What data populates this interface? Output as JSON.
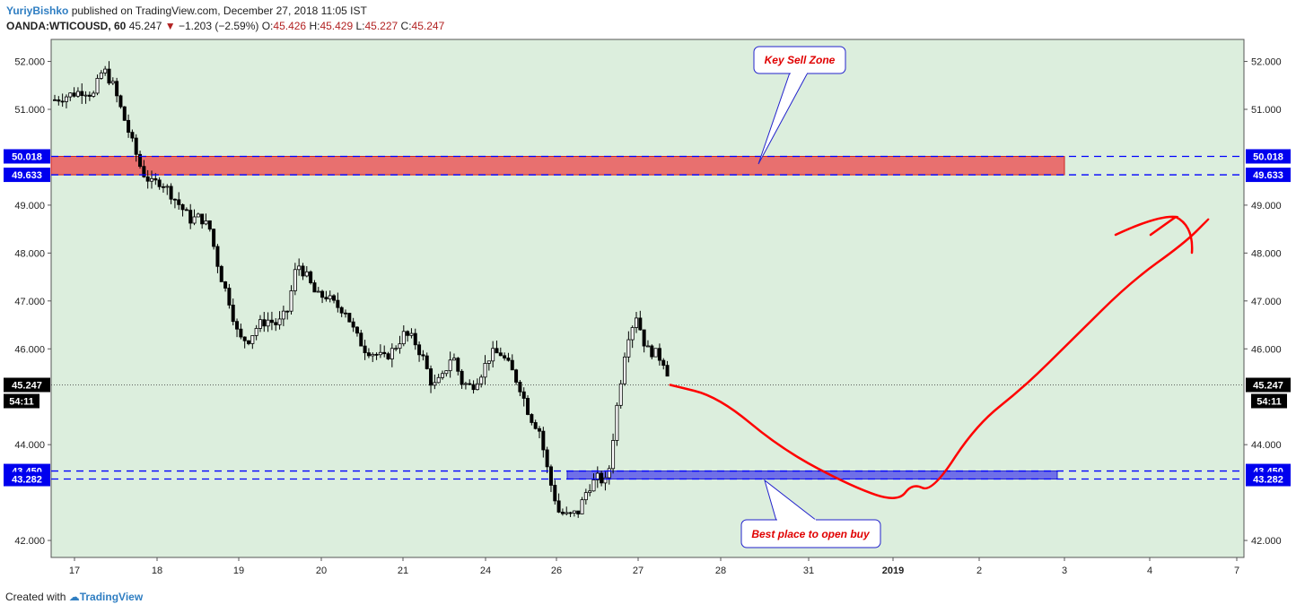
{
  "header": {
    "author": "YuriyBishko",
    "published": "published on TradingView.com, December 27, 2018 11:05 IST",
    "symbol": "OANDA:WTICOUSD, 60",
    "last": "45.247",
    "change": "−1.203 (−2.59%)",
    "o_label": "O:",
    "o_value": "45.426",
    "h_label": "H:",
    "h_value": "45.429",
    "l_label": "L:",
    "l_value": "45.227",
    "c_label": "C:",
    "c_value": "45.247"
  },
  "footer": {
    "prefix": "Created with",
    "brand": "TradingView"
  },
  "colors": {
    "plot_bg": "#dceedd",
    "sell_zone": "#e8706f",
    "buy_zone": "#6f6fe8",
    "level_line": "#0000ff",
    "projection": "#ff0000",
    "candle": "#000000"
  },
  "chart_data": {
    "type": "candlestick",
    "symbol": "OANDA:WTICOUSD",
    "timeframe": "60",
    "ylim": [
      41.6,
      52.4
    ],
    "yticks": [
      "42.000",
      "44.000",
      "46.000",
      "47.000",
      "48.000",
      "49.000",
      "51.000",
      "52.000"
    ],
    "xticks": [
      "17",
      "18",
      "19",
      "20",
      "21",
      "24",
      "26",
      "27",
      "28",
      "31",
      "2019",
      "2",
      "3",
      "4",
      "7"
    ],
    "last_price": "45.247",
    "countdown": "54:11",
    "levels": [
      {
        "value": "50.018",
        "label": "50.018"
      },
      {
        "value": "49.633",
        "label": "49.633"
      },
      {
        "value": "43.450",
        "label": "43.450"
      },
      {
        "value": "43.282",
        "label": "43.282"
      }
    ],
    "zones": [
      {
        "name": "sell",
        "from": 49.633,
        "to": 50.018
      },
      {
        "name": "buy",
        "from": 43.282,
        "to": 43.45
      }
    ],
    "annotations": [
      {
        "text": "Key Sell Zone"
      },
      {
        "text": "Best place to open buy"
      }
    ],
    "price_path": [
      [
        0,
        51.2
      ],
      [
        3,
        51.3
      ],
      [
        6,
        51.4
      ],
      [
        8,
        51.3
      ],
      [
        9,
        51.6
      ],
      [
        10,
        51.85
      ],
      [
        12,
        51.5
      ],
      [
        14,
        50.9
      ],
      [
        16,
        50.3
      ],
      [
        18,
        49.7
      ],
      [
        20,
        49.45
      ],
      [
        22,
        49.5
      ],
      [
        25,
        49.1
      ],
      [
        28,
        48.7
      ],
      [
        30,
        48.75
      ],
      [
        32,
        48.5
      ],
      [
        34,
        47.6
      ],
      [
        36,
        47.0
      ],
      [
        38,
        46.2
      ],
      [
        40,
        46.2
      ],
      [
        42,
        46.5
      ],
      [
        44,
        46.6
      ],
      [
        46,
        46.5
      ],
      [
        48,
        46.8
      ],
      [
        50,
        47.8
      ],
      [
        52,
        47.5
      ],
      [
        54,
        47.1
      ],
      [
        56,
        47.1
      ],
      [
        58,
        46.9
      ],
      [
        60,
        46.8
      ],
      [
        62,
        46.3
      ],
      [
        64,
        46.0
      ],
      [
        66,
        45.9
      ],
      [
        68,
        45.8
      ],
      [
        70,
        46.0
      ],
      [
        72,
        46.3
      ],
      [
        74,
        46.2
      ],
      [
        76,
        45.8
      ],
      [
        78,
        45.2
      ],
      [
        80,
        45.4
      ],
      [
        82,
        45.9
      ],
      [
        84,
        45.3
      ],
      [
        86,
        45.2
      ],
      [
        88,
        45.5
      ],
      [
        90,
        45.9
      ],
      [
        92,
        45.9
      ],
      [
        94,
        45.6
      ],
      [
        96,
        45.2
      ],
      [
        98,
        44.6
      ],
      [
        100,
        44.3
      ],
      [
        102,
        43.3
      ],
      [
        104,
        42.6
      ],
      [
        106,
        42.5
      ],
      [
        108,
        42.6
      ],
      [
        110,
        43.1
      ],
      [
        112,
        43.3
      ],
      [
        114,
        43.2
      ],
      [
        116,
        44.8
      ],
      [
        118,
        46.2
      ],
      [
        120,
        46.7
      ],
      [
        122,
        46.0
      ],
      [
        124,
        45.9
      ],
      [
        126,
        45.7
      ],
      [
        127,
        45.25
      ]
    ],
    "projection": [
      [
        127,
        45.247
      ],
      [
        137,
        45.0
      ],
      [
        150,
        43.9
      ],
      [
        165,
        43.1
      ],
      [
        174,
        42.8
      ],
      [
        177,
        43.2
      ],
      [
        181,
        43.0
      ],
      [
        190,
        44.4
      ],
      [
        200,
        45.2
      ],
      [
        210,
        46.2
      ],
      [
        222,
        47.4
      ],
      [
        233,
        48.2
      ],
      [
        238,
        48.7
      ]
    ]
  }
}
